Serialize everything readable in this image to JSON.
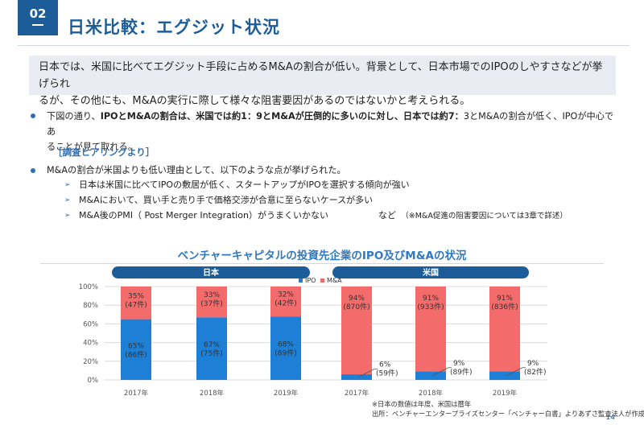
{
  "header": {
    "section_number": "02",
    "title": "日米比較：エグジット状況"
  },
  "summary": {
    "line1": "日本では、米国に比べてエグジット手段に占めるM&Aの割合が低い。背景として、日本市場でのIPOのしやすさなどが挙げられ",
    "line2": "るが、その他にも、M&Aの実行に際して様々な阻害要因があるのではないかと考えられる。"
  },
  "bullet1": {
    "a": "下図の通り、",
    "b": "IPOとM&Aの割合は、米国では約1：9とM&Aが圧倒的に多いのに対し、日本では約7：",
    "c": "3とM&Aの割合が低く、IPOが中心であ",
    "d": "ることが見て取れる。"
  },
  "hearing_label": "［調査ヒアリングより］",
  "bullet2": {
    "text": "M&Aの割合が米国よりも低い理由として、以下のような点が挙げられた。",
    "subs": [
      "日本は米国に比べてIPOの敷居が低く、スタートアップがIPOを選択する傾向が強い",
      "M&Aにおいて、買い手と売り手で価格交渉が合意に至らないケースが多い",
      "M&A後のPMI（ Post Merger Integration）がうまくいかない"
    ],
    "note_a": "など",
    "note_b": "（※M&A促進の阻害要因については3章で詳述）"
  },
  "chart_title": "ベンチャーキャピタルの投資先企業のIPO及びM&Aの状況",
  "chart_data": {
    "type": "bar",
    "stacked": true,
    "normalized_percent": true,
    "groups": [
      "日本",
      "米国"
    ],
    "categories": [
      "2017年",
      "2018年",
      "2019年",
      "2017年",
      "2018年",
      "2019年"
    ],
    "category_group": [
      "日本",
      "日本",
      "日本",
      "米国",
      "米国",
      "米国"
    ],
    "series": [
      {
        "name": "IPO",
        "color": "#1e7fd6",
        "values": [
          65,
          67,
          68,
          6,
          9,
          9
        ],
        "counts": [
          "(86件)",
          "(75件)",
          "(89件)",
          "(59件)",
          "(89件)",
          "(82件)"
        ]
      },
      {
        "name": "M&A",
        "color": "#f36b6b",
        "values": [
          35,
          33,
          32,
          94,
          91,
          91
        ],
        "counts": [
          "(47件)",
          "(37件)",
          "(42件)",
          "(870件)",
          "(933件)",
          "(836件)"
        ]
      }
    ],
    "yticks": [
      "100%",
      "80%",
      "60%",
      "40%",
      "20%",
      "0%"
    ],
    "ylim": [
      0,
      100
    ],
    "legend_position": "top-center"
  },
  "footnote": {
    "line1": "※日本の数値は年度、米国は暦年",
    "line2": "出所：ベンチャーエンタープライズセンター「ベンチャー白書」よりあずさ監査法人が作成"
  },
  "page_number": "14",
  "colors": {
    "brand": "#1c5d99",
    "accent": "#2f78c4",
    "ipo": "#1e7fd6",
    "ma": "#f36b6b",
    "summary_bg": "#e9edf3"
  }
}
